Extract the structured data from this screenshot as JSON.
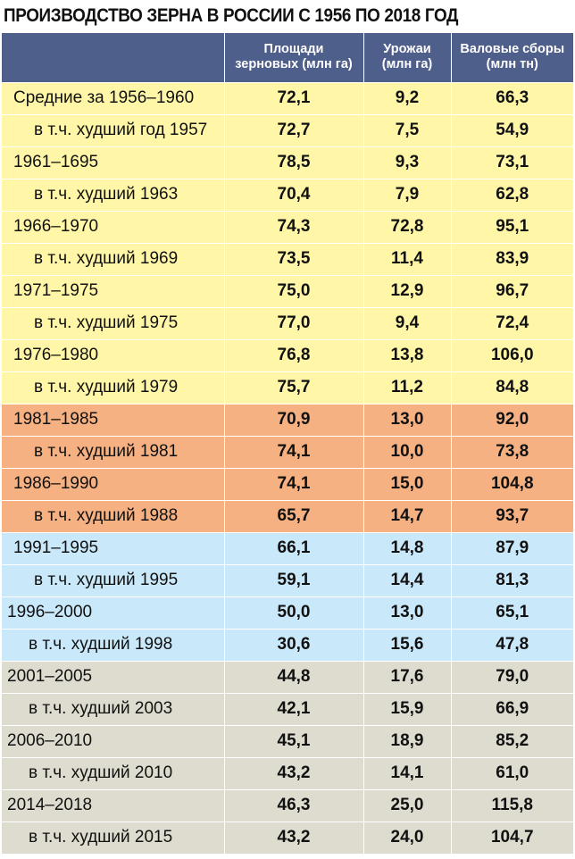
{
  "title": "ПРОИЗВОДСТВО ЗЕРНА В РОССИИ С 1956 ПО 2018 ГОД",
  "colors": {
    "header": "#4f5f8c",
    "yellow": "#fff7a7",
    "orange": "#f6b182",
    "blue": "#c9e9fa",
    "gray": "#dedcce"
  },
  "chart_data": {
    "type": "table",
    "title": "ПРОИЗВОДСТВО ЗЕРНА В РОССИИ С 1956 ПО 2018 ГОД",
    "columns": [
      {
        "line1": "Площади",
        "line2": "зерновых (млн га)"
      },
      {
        "line1": "Урожаи",
        "line2": "(млн га)"
      },
      {
        "line1": "Валовые сборы",
        "line2": "(млн тн)"
      }
    ],
    "rows": [
      {
        "label": "Средние за 1956–1960",
        "values": [
          "72,1",
          "9,2",
          "66,3"
        ],
        "group": "yellow",
        "sub": false
      },
      {
        "label": "в т.ч. худший год 1957",
        "values": [
          "72,7",
          "7,5",
          "54,9"
        ],
        "group": "yellow",
        "sub": true
      },
      {
        "label": "1961–1695",
        "values": [
          "78,5",
          "9,3",
          "73,1"
        ],
        "group": "yellow",
        "sub": false
      },
      {
        "label": "в т.ч. худший 1963",
        "values": [
          "70,4",
          "7,9",
          "62,8"
        ],
        "group": "yellow",
        "sub": true
      },
      {
        "label": "1966–1970",
        "values": [
          "74,3",
          "72,8",
          "95,1"
        ],
        "group": "yellow",
        "sub": false
      },
      {
        "label": "в т.ч. худший 1969",
        "values": [
          "73,5",
          "11,4",
          "83,9"
        ],
        "group": "yellow",
        "sub": true
      },
      {
        "label": "1971–1975",
        "values": [
          "75,0",
          "12,9",
          "96,7"
        ],
        "group": "yellow",
        "sub": false
      },
      {
        "label": "в т.ч. худший 1975",
        "values": [
          "77,0",
          "9,4",
          "72,4"
        ],
        "group": "yellow",
        "sub": true
      },
      {
        "label": "1976–1980",
        "values": [
          "76,8",
          "13,8",
          "106,0"
        ],
        "group": "yellow",
        "sub": false
      },
      {
        "label": "в т.ч. худший 1979",
        "values": [
          "75,7",
          "11,2",
          "84,8"
        ],
        "group": "yellow",
        "sub": true
      },
      {
        "label": "1981–1985",
        "values": [
          "70,9",
          "13,0",
          "92,0"
        ],
        "group": "orange",
        "sub": false
      },
      {
        "label": "в т.ч. худший 1981",
        "values": [
          "74,1",
          "10,0",
          "73,8"
        ],
        "group": "orange",
        "sub": true
      },
      {
        "label": "1986–1990",
        "values": [
          "74,1",
          "15,0",
          "104,8"
        ],
        "group": "orange",
        "sub": false
      },
      {
        "label": "в т.ч. худший 1988",
        "values": [
          "65,7",
          "14,7",
          "93,7"
        ],
        "group": "orange",
        "sub": true
      },
      {
        "label": "1991–1995",
        "values": [
          "66,1",
          "14,8",
          "87,9"
        ],
        "group": "blue",
        "sub": false
      },
      {
        "label": "в т.ч. худший 1995",
        "values": [
          "59,1",
          "14,4",
          "81,3"
        ],
        "group": "blue",
        "sub": true
      },
      {
        "label": "1996–2000",
        "values": [
          "50,0",
          "13,0",
          "65,1"
        ],
        "group": "blue late",
        "sub": false
      },
      {
        "label": "в т.ч. худший 1998",
        "values": [
          "30,6",
          "15,6",
          "47,8"
        ],
        "group": "blue late",
        "sub": true
      },
      {
        "label": "2001–2005",
        "values": [
          "44,8",
          "17,6",
          "79,0"
        ],
        "group": "gray",
        "sub": false
      },
      {
        "label": "в т.ч. худший 2003",
        "values": [
          "42,1",
          "15,9",
          "66,9"
        ],
        "group": "gray",
        "sub": true
      },
      {
        "label": "2006–2010",
        "values": [
          "45,1",
          "18,9",
          "85,2"
        ],
        "group": "gray",
        "sub": false
      },
      {
        "label": "в т.ч. худший 2010",
        "values": [
          "43,2",
          "14,1",
          "61,0"
        ],
        "group": "gray",
        "sub": true
      },
      {
        "label": "2014–2018",
        "values": [
          "46,3",
          "25,0",
          "115,8"
        ],
        "group": "gray",
        "sub": false
      },
      {
        "label": "в т.ч. худший 2015",
        "values": [
          "43,2",
          "24,0",
          "104,7"
        ],
        "group": "gray",
        "sub": true
      }
    ]
  }
}
